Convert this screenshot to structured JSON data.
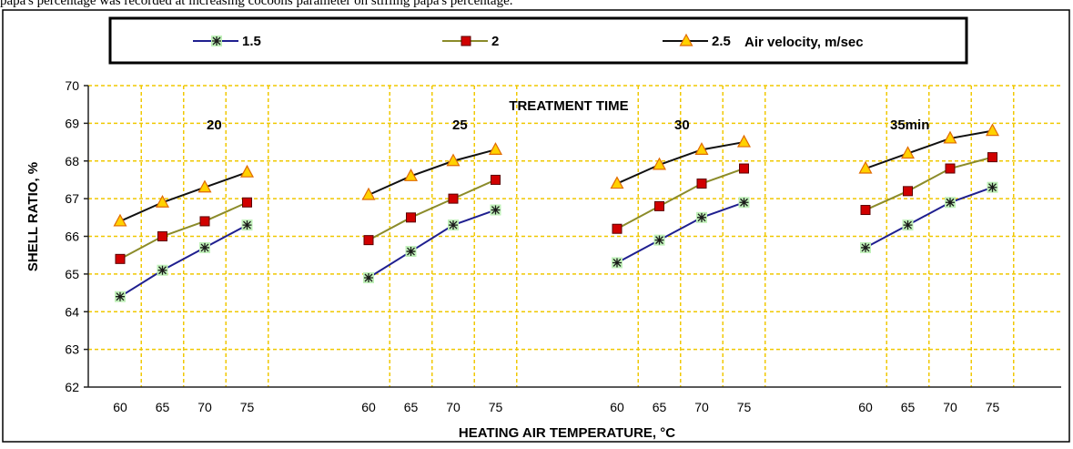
{
  "caption": "papa's percentage was recorded at increasing cocoons parameter on stifling papa's percentage.",
  "chart_data": {
    "type": "line",
    "ylabel": "SHELL RATIO, %",
    "xlabel": "HEATING AIR TEMPERATURE, °C",
    "ylim": [
      62,
      70
    ],
    "yticks": [
      "62",
      "63",
      "64",
      "65",
      "66",
      "67",
      "68",
      "69",
      "70"
    ],
    "grid": true,
    "legend_title": "Air velocity, m/sec",
    "legend_placement": "top",
    "group_title": "TREATMENT TIME",
    "groups": [
      {
        "label": "20",
        "categories": [
          "60",
          "65",
          "70",
          "75"
        ]
      },
      {
        "label": "25",
        "categories": [
          "60",
          "65",
          "70",
          "75"
        ]
      },
      {
        "label": "30",
        "categories": [
          "60",
          "65",
          "70",
          "75"
        ]
      },
      {
        "label": "35min",
        "categories": [
          "60",
          "65",
          "70",
          "75"
        ]
      }
    ],
    "series": [
      {
        "name": "1.5",
        "color": "#1f1f8f",
        "marker": "asterisk",
        "values": [
          [
            64.4,
            65.1,
            65.7,
            66.3
          ],
          [
            64.9,
            65.6,
            66.3,
            66.7
          ],
          [
            65.3,
            65.9,
            66.5,
            66.9
          ],
          [
            65.7,
            66.3,
            66.9,
            67.3
          ]
        ]
      },
      {
        "name": "2",
        "color": "#8b8b2a",
        "marker": "square",
        "values": [
          [
            65.4,
            66.0,
            66.4,
            66.9
          ],
          [
            65.9,
            66.5,
            67.0,
            67.5
          ],
          [
            66.2,
            66.8,
            67.4,
            67.8
          ],
          [
            66.7,
            67.2,
            67.8,
            68.1
          ]
        ]
      },
      {
        "name": "2.5",
        "color": "#111111",
        "marker": "triangle",
        "values": [
          [
            66.4,
            66.9,
            67.3,
            67.7
          ],
          [
            67.1,
            67.6,
            68.0,
            68.3
          ],
          [
            67.4,
            67.9,
            68.3,
            68.5
          ],
          [
            67.8,
            68.2,
            68.6,
            68.8
          ]
        ]
      }
    ],
    "colors": {
      "grid": "#f0c800",
      "axis": "#222222",
      "square_fill": "#d10000",
      "triangle_fill": "#ffd200",
      "triangle_stroke": "#e06a00",
      "asterisk_bg": "#bff0b8"
    }
  }
}
